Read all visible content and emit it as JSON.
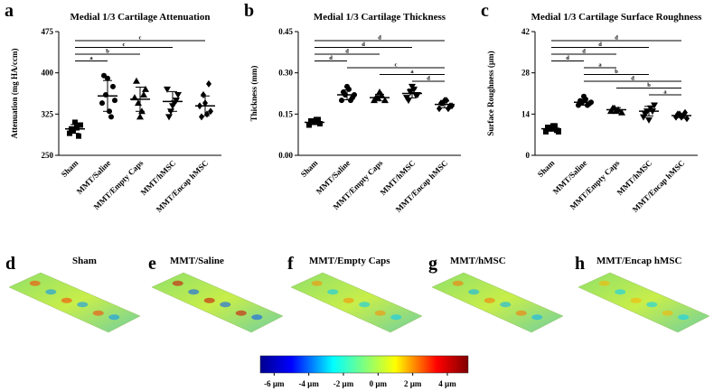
{
  "chart_data": [
    {
      "type": "strip",
      "panel": "a",
      "title": "Medial 1/3 Cartilage Attenuation",
      "ylabel": "Attenuation (mg HA/ccm)",
      "categories": [
        "Sham",
        "MMT/Saline",
        "MMT/Empty Caps",
        "MMT/hMSC",
        "MMT/Encap hMSC"
      ],
      "markers": [
        "square",
        "circle",
        "triangle",
        "triangle-down",
        "diamond"
      ],
      "color": "#000000",
      "ylim": [
        250,
        475
      ],
      "yticks": [
        250,
        325,
        400,
        475
      ],
      "points": [
        [
          290,
          295,
          300,
          305,
          298,
          310,
          285
        ],
        [
          345,
          360,
          330,
          375,
          395,
          390,
          320,
          350
        ],
        [
          355,
          345,
          330,
          370,
          385,
          320,
          360
        ],
        [
          370,
          330,
          345,
          360,
          320,
          340,
          350
        ],
        [
          340,
          360,
          325,
          330,
          320,
          345,
          380
        ]
      ],
      "means": [
        298,
        358,
        352,
        348,
        340
      ],
      "sd": [
        8,
        28,
        22,
        18,
        18
      ],
      "brackets": [
        {
          "pair": [
            "Sham",
            "MMT/Encap hMSC"
          ],
          "label": "c"
        },
        {
          "pair": [
            "Sham",
            "MMT/hMSC"
          ],
          "label": "c"
        },
        {
          "pair": [
            "Sham",
            "MMT/Empty Caps"
          ],
          "label": "b"
        },
        {
          "pair": [
            "Sham",
            "MMT/Saline"
          ],
          "label": "a"
        }
      ]
    },
    {
      "type": "strip",
      "panel": "b",
      "title": "Medial 1/3 Cartilage Thickness",
      "ylabel": "Thickness (mm)",
      "categories": [
        "Sham",
        "MMT/Saline",
        "MMT/Empty Caps",
        "MMT/hMSC",
        "MMT/Encap hMSC"
      ],
      "markers": [
        "square",
        "circle",
        "triangle",
        "triangle-down",
        "diamond"
      ],
      "color": "#000000",
      "ylim": [
        0,
        0.45
      ],
      "yticks": [
        {
          "value": 0,
          "label": "0.00"
        },
        {
          "value": 0.15,
          "label": "0.15"
        },
        {
          "value": 0.3,
          "label": "0.30"
        },
        {
          "value": 0.45,
          "label": "0.45"
        }
      ],
      "points": [
        [
          0.11,
          0.12,
          0.13,
          0.115,
          0.125,
          0.12,
          0.13
        ],
        [
          0.2,
          0.22,
          0.24,
          0.21,
          0.23,
          0.25,
          0.2,
          0.22
        ],
        [
          0.2,
          0.21,
          0.22,
          0.2,
          0.21,
          0.23
        ],
        [
          0.21,
          0.23,
          0.24,
          0.22,
          0.2,
          0.25,
          0.22
        ],
        [
          0.17,
          0.19,
          0.2,
          0.18,
          0.19,
          0.2,
          0.17,
          0.18
        ]
      ],
      "means": [
        0.12,
        0.22,
        0.21,
        0.225,
        0.185
      ],
      "sd": [
        0.008,
        0.018,
        0.012,
        0.016,
        0.012
      ],
      "brackets": [
        {
          "pair": [
            "Sham",
            "MMT/Encap hMSC"
          ],
          "label": "d"
        },
        {
          "pair": [
            "Sham",
            "MMT/hMSC"
          ],
          "label": "d"
        },
        {
          "pair": [
            "Sham",
            "MMT/Empty Caps"
          ],
          "label": "d"
        },
        {
          "pair": [
            "Sham",
            "MMT/Saline"
          ],
          "label": "d"
        },
        {
          "pair": [
            "MMT/Saline",
            "MMT/Encap hMSC"
          ],
          "label": "c"
        },
        {
          "pair": [
            "MMT/Empty Caps",
            "MMT/Encap hMSC"
          ],
          "label": "a"
        },
        {
          "pair": [
            "MMT/hMSC",
            "MMT/Encap hMSC"
          ],
          "label": "d"
        }
      ]
    },
    {
      "type": "strip",
      "panel": "c",
      "title": "Medial 1/3 Cartilage Surface Roughness",
      "ylabel": "Surface Roughness (µm)",
      "categories": [
        "Sham",
        "MMT/Saline",
        "MMT/Empty Caps",
        "MMT/hMSC",
        "MMT/Encap hMSC"
      ],
      "markers": [
        "square",
        "circle",
        "triangle",
        "triangle-down",
        "diamond"
      ],
      "color": "#000000",
      "ylim": [
        0,
        42
      ],
      "yticks": [
        0,
        14,
        28,
        42
      ],
      "points": [
        [
          8,
          9,
          10,
          8.5,
          9.5,
          9,
          10,
          8
        ],
        [
          17,
          18,
          19,
          17.5,
          18.5,
          20,
          17,
          18
        ],
        [
          15,
          16,
          15.5,
          14.5,
          16,
          15
        ],
        [
          13,
          15,
          16,
          17,
          14,
          12,
          15
        ],
        [
          13,
          14,
          13.5,
          12.5,
          14,
          13,
          14.5
        ]
      ],
      "means": [
        9,
        18,
        15.5,
        15,
        13.5
      ],
      "sd": [
        0.8,
        1,
        0.7,
        1.6,
        0.7
      ],
      "brackets": [
        {
          "pair": [
            "Sham",
            "MMT/Encap hMSC"
          ],
          "label": "d"
        },
        {
          "pair": [
            "Sham",
            "MMT/hMSC"
          ],
          "label": "d"
        },
        {
          "pair": [
            "Sham",
            "MMT/Empty Caps"
          ],
          "label": "d"
        },
        {
          "pair": [
            "Sham",
            "MMT/Saline"
          ],
          "label": "d"
        },
        {
          "pair": [
            "MMT/Saline",
            "MMT/Empty Caps"
          ],
          "label": "a"
        },
        {
          "pair": [
            "MMT/Saline",
            "MMT/hMSC"
          ],
          "label": "b"
        },
        {
          "pair": [
            "MMT/Saline",
            "MMT/Encap hMSC"
          ],
          "label": "d"
        },
        {
          "pair": [
            "MMT/Empty Caps",
            "MMT/Encap hMSC"
          ],
          "label": "b"
        },
        {
          "pair": [
            "MMT/hMSC",
            "MMT/Encap hMSC"
          ],
          "label": "a"
        }
      ]
    }
  ],
  "surfaces": [
    {
      "letter": "d",
      "title": "Sham"
    },
    {
      "letter": "e",
      "title": "MMT/Saline"
    },
    {
      "letter": "f",
      "title": "MMT/Empty Caps"
    },
    {
      "letter": "g",
      "title": "MMT/hMSC"
    },
    {
      "letter": "h",
      "title": "MMT/Encap hMSC"
    }
  ],
  "colorbar": {
    "lim": [
      -6.8,
      5.2
    ],
    "ticks": [
      {
        "value": -6,
        "label": "-6 µm"
      },
      {
        "value": -4,
        "label": "-4 µm"
      },
      {
        "value": -2,
        "label": "-2 µm"
      },
      {
        "value": 0,
        "label": "0 µm"
      },
      {
        "value": 2,
        "label": "2 µm"
      },
      {
        "value": 4,
        "label": "4 µm"
      }
    ]
  }
}
